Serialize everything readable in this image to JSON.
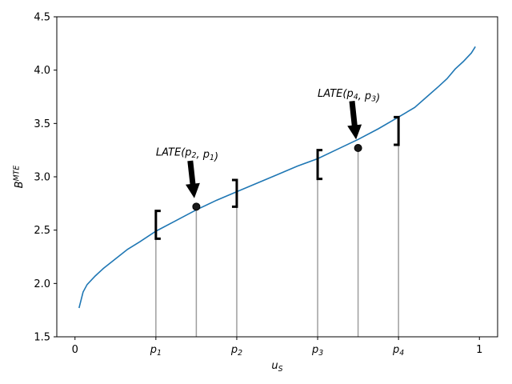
{
  "chart_data": {
    "type": "line",
    "xlabel": "u_S",
    "ylabel": "B^MTE",
    "xlim": [
      -0.045,
      1.045
    ],
    "ylim": [
      1.5,
      4.5
    ],
    "grid": false,
    "x_ticks": [
      {
        "value": 0,
        "label": "0"
      },
      {
        "value": 0.2,
        "label": "p_1"
      },
      {
        "value": 0.4,
        "label": "p_2"
      },
      {
        "value": 0.6,
        "label": "p_3"
      },
      {
        "value": 0.8,
        "label": "p_4"
      },
      {
        "value": 1,
        "label": "1"
      }
    ],
    "y_ticks": [
      1.5,
      2.0,
      2.5,
      3.0,
      3.5,
      4.0,
      4.5
    ],
    "y_tick_labels": [
      "1.5",
      "2.0",
      "2.5",
      "3.0",
      "3.5",
      "4.0",
      "4.5"
    ],
    "series": [
      {
        "color": "#1f77b4",
        "x": [
          0.01,
          0.02,
          0.03,
          0.05,
          0.07,
          0.1,
          0.13,
          0.16,
          0.2,
          0.25,
          0.3,
          0.35,
          0.4,
          0.45,
          0.5,
          0.55,
          0.6,
          0.65,
          0.7,
          0.75,
          0.8,
          0.84,
          0.87,
          0.9,
          0.92,
          0.94,
          0.96,
          0.98,
          0.99
        ],
        "y": [
          1.77,
          1.92,
          1.99,
          2.07,
          2.14,
          2.23,
          2.32,
          2.39,
          2.49,
          2.59,
          2.69,
          2.78,
          2.86,
          2.94,
          3.02,
          3.1,
          3.17,
          3.26,
          3.35,
          3.45,
          3.56,
          3.65,
          3.75,
          3.85,
          3.92,
          4.01,
          4.08,
          4.16,
          4.22
        ]
      }
    ],
    "vertical_lines": [
      {
        "x": 0.2,
        "y_top": 2.55
      },
      {
        "x": 0.3,
        "y_top": 2.72
      },
      {
        "x": 0.4,
        "y_top": 2.86
      },
      {
        "x": 0.6,
        "y_top": 3.13
      },
      {
        "x": 0.7,
        "y_top": 3.27
      },
      {
        "x": 0.8,
        "y_top": 3.43
      }
    ],
    "points": [
      {
        "x": 0.3,
        "y": 2.72
      },
      {
        "x": 0.7,
        "y": 3.27
      }
    ],
    "brackets": [
      {
        "x": 0.2,
        "side": "left",
        "y_low": 2.42,
        "y_high": 2.68
      },
      {
        "x": 0.4,
        "side": "right",
        "y_low": 2.72,
        "y_high": 2.97
      },
      {
        "x": 0.6,
        "side": "left",
        "y_low": 2.98,
        "y_high": 3.25
      },
      {
        "x": 0.8,
        "side": "right",
        "y_low": 3.3,
        "y_high": 3.56
      }
    ],
    "annotations": [
      {
        "text": "LATE(p_2, p_1)",
        "text_x": 0.2,
        "text_y": 3.2,
        "arrow_from": [
          0.285,
          3.15
        ],
        "arrow_to": [
          0.295,
          2.8
        ]
      },
      {
        "text": "LATE(p_4, p_3)",
        "text_x": 0.6,
        "text_y": 3.75,
        "arrow_from": [
          0.685,
          3.71
        ],
        "arrow_to": [
          0.695,
          3.35
        ]
      }
    ]
  }
}
